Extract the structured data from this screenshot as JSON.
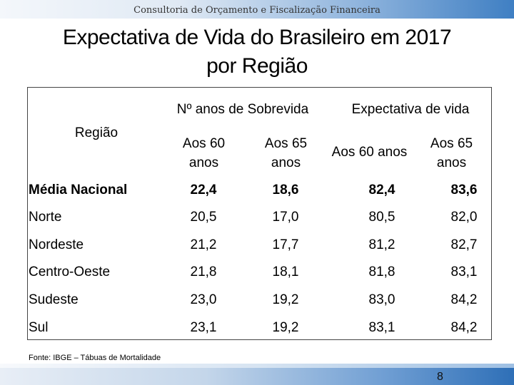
{
  "header": {
    "text": "Consultoria de Orçamento e Fiscalização Financeira"
  },
  "title": {
    "line1": "Expectativa de Vida do Brasileiro em 2017",
    "line2": "por Região"
  },
  "table": {
    "region_header": "Região",
    "group_headers": [
      "Nº anos de Sobrevida",
      "Expectativa de vida"
    ],
    "sub_headers": [
      {
        "line1": "Aos 60",
        "line2": "anos"
      },
      {
        "line1": "Aos 65",
        "line2": "anos"
      },
      {
        "line1": "Aos 60 anos",
        "line2": ""
      },
      {
        "line1": "Aos 65",
        "line2": "anos"
      }
    ],
    "rows": [
      {
        "region": "Média Nacional",
        "values": [
          "22,4",
          "18,6",
          "82,4",
          "83,6"
        ]
      },
      {
        "region": "Norte",
        "values": [
          "20,5",
          "17,0",
          "80,5",
          "82,0"
        ]
      },
      {
        "region": "Nordeste",
        "values": [
          "21,2",
          "17,7",
          "81,2",
          "82,7"
        ]
      },
      {
        "region": "Centro-Oeste",
        "values": [
          "21,8",
          "18,1",
          "81,8",
          "83,1"
        ]
      },
      {
        "region": "Sudeste",
        "values": [
          "23,0",
          "19,2",
          "83,0",
          "84,2"
        ]
      },
      {
        "region": "Sul",
        "values": [
          "23,1",
          "19,2",
          "83,1",
          "84,2"
        ]
      }
    ]
  },
  "source": "Fonte: IBGE – Tábuas de Mortalidade",
  "page_number": "8"
}
